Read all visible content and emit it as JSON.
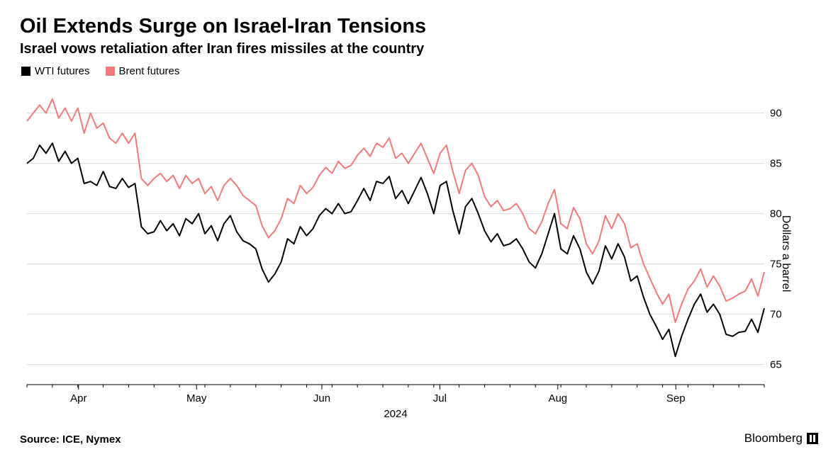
{
  "title": "Oil Extends Surge on Israel-Iran Tensions",
  "subtitle": "Israel vows retaliation after Iran fires missiles at the country",
  "legend": {
    "series1": {
      "label": "WTI futures",
      "color": "#000000"
    },
    "series2": {
      "label": "Brent futures",
      "color": "#f47a7a"
    }
  },
  "chart": {
    "type": "line",
    "background_color": "#ffffff",
    "grid_color": "#d9d9d9",
    "axis_color": "#000000",
    "text_color": "#000000",
    "tick_fontsize": 15,
    "line_width": 2,
    "y": {
      "label": "Dollars a barrel",
      "min": 63,
      "max": 93,
      "ticks": [
        65,
        70,
        75,
        80,
        85,
        90
      ]
    },
    "x": {
      "label": "2024",
      "ticks": [
        "Apr",
        "May",
        "Jun",
        "Jul",
        "Aug",
        "Sep"
      ]
    },
    "series": {
      "wti": [
        85.0,
        85.5,
        86.8,
        86.0,
        87.0,
        85.2,
        86.2,
        85.0,
        85.5,
        83.0,
        83.2,
        82.8,
        84.2,
        82.7,
        82.5,
        83.5,
        82.6,
        83.0,
        78.7,
        78.0,
        78.2,
        79.3,
        78.3,
        79.0,
        77.8,
        79.5,
        79.0,
        80.0,
        78.0,
        78.8,
        77.3,
        79.0,
        79.8,
        78.2,
        77.3,
        77.0,
        76.5,
        74.5,
        73.2,
        74.0,
        75.2,
        77.5,
        77.0,
        78.7,
        77.8,
        78.5,
        79.8,
        80.5,
        80.0,
        81.0,
        80.0,
        80.2,
        81.3,
        82.5,
        81.3,
        83.2,
        83.0,
        83.7,
        81.5,
        82.3,
        81.0,
        82.3,
        83.6,
        82.0,
        80.0,
        82.8,
        83.2,
        80.3,
        78.0,
        80.7,
        81.5,
        80.0,
        78.3,
        77.2,
        78.0,
        76.8,
        77.0,
        77.5,
        76.5,
        75.2,
        74.6,
        76.0,
        78.0,
        80.0,
        76.5,
        76.0,
        77.8,
        76.5,
        74.2,
        73.0,
        74.3,
        76.8,
        75.5,
        77.0,
        75.7,
        73.3,
        73.8,
        71.7,
        70.0,
        68.8,
        67.5,
        68.5,
        65.8,
        67.8,
        69.5,
        71.0,
        72.0,
        70.2,
        71.0,
        70.0,
        68.0,
        67.8,
        68.2,
        68.3,
        69.5,
        68.2,
        70.6
      ],
      "brent": [
        89.2,
        90.0,
        90.8,
        90.0,
        91.4,
        89.5,
        90.5,
        89.2,
        90.5,
        88.0,
        90.0,
        88.5,
        89.0,
        87.5,
        87.0,
        88.0,
        87.0,
        88.0,
        83.5,
        82.8,
        83.5,
        84.0,
        83.2,
        83.8,
        82.5,
        83.8,
        83.0,
        83.5,
        82.0,
        82.7,
        81.3,
        82.8,
        83.5,
        82.8,
        81.8,
        81.3,
        80.8,
        78.8,
        77.6,
        78.3,
        79.5,
        81.5,
        81.0,
        82.8,
        82.0,
        82.6,
        83.8,
        84.6,
        84.0,
        85.2,
        84.5,
        84.8,
        85.8,
        86.5,
        85.7,
        87.0,
        86.6,
        87.5,
        85.5,
        86.0,
        85.0,
        86.0,
        87.0,
        85.5,
        84.0,
        86.0,
        86.8,
        84.2,
        82.0,
        84.3,
        85.0,
        83.8,
        81.7,
        80.7,
        81.3,
        80.3,
        80.5,
        81.0,
        80.0,
        78.5,
        78.0,
        79.2,
        81.0,
        82.4,
        79.0,
        78.5,
        80.6,
        79.5,
        77.0,
        76.0,
        77.3,
        79.8,
        78.5,
        80.0,
        79.0,
        76.6,
        77.0,
        75.0,
        73.6,
        72.2,
        71.0,
        72.0,
        69.2,
        71.0,
        72.5,
        73.3,
        74.5,
        72.7,
        73.8,
        72.8,
        71.3,
        71.6,
        72.0,
        72.3,
        73.5,
        71.8,
        74.2
      ]
    }
  },
  "source": "Source: ICE, Nymex",
  "brand": "Bloomberg"
}
